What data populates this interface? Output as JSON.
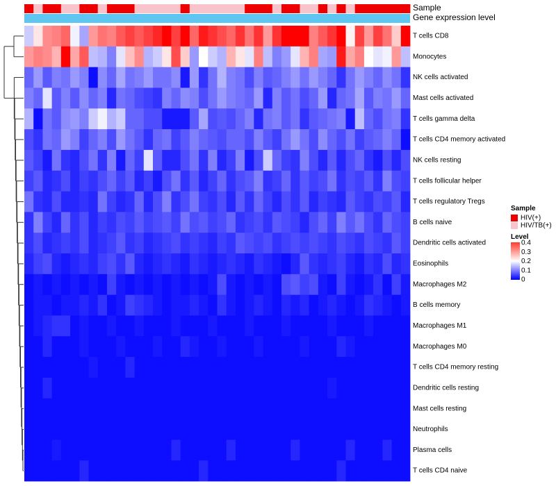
{
  "chart_data": {
    "type": "heatmap",
    "title": "",
    "annotation_tracks": [
      "Sample",
      "Gene expression level"
    ],
    "sample_groups": [
      "HIV(+)",
      "HIV/TB(+)"
    ],
    "sample_colors": {
      "HIV(+)": "#ee0000",
      "HIV/TB(+)": "#f9c3cb"
    },
    "gene_expression_color": "#5ec6f0",
    "sample_annotation": [
      1,
      0,
      1,
      1,
      0,
      0,
      1,
      1,
      0,
      1,
      1,
      1,
      0,
      0,
      0,
      0,
      0,
      1,
      0,
      0,
      0,
      0,
      0,
      0,
      1,
      1,
      1,
      0,
      1,
      1,
      0,
      0,
      1,
      0,
      1,
      0,
      1,
      1,
      1,
      1,
      1,
      1
    ],
    "rows": [
      "T cells CD8",
      "Monocytes",
      "NK cells activated",
      "Mast cells activated",
      "T cells gamma delta",
      "T cells CD4 memory activated",
      "NK cells resting",
      "T cells follicular helper",
      "T cells regulatory  Tregs",
      "B cells naive",
      "Dendritic cells activated",
      "Eosinophils",
      "Macrophages M2",
      "B cells memory",
      "Macrophages M1",
      "Macrophages M0",
      "T cells CD4 memory resting",
      "Dendritic cells resting",
      "Mast cells resting",
      "Neutrophils",
      "Plasma cells",
      "T cells CD4 naive"
    ],
    "values": [
      [
        0.16,
        0.22,
        0.29,
        0.3,
        0.32,
        0.19,
        0.13,
        0.28,
        0.31,
        0.3,
        0.33,
        0.35,
        0.33,
        0.35,
        0.37,
        0.42,
        0.35,
        0.41,
        0.32,
        0.38,
        0.36,
        0.34,
        0.32,
        0.36,
        0.31,
        0.36,
        0.28,
        0.36,
        0.42,
        0.4,
        0.43,
        0.3,
        0.33,
        0.36,
        0.42,
        0.21,
        0.35,
        0.28,
        0.35,
        0.31,
        0.24,
        0.42
      ],
      [
        0.28,
        0.3,
        0.29,
        0.26,
        0.4,
        0.27,
        0.33,
        0.15,
        0.14,
        0.1,
        0.18,
        0.25,
        0.29,
        0.14,
        0.16,
        0.22,
        0.34,
        0.24,
        0.12,
        0.2,
        0.16,
        0.14,
        0.26,
        0.22,
        0.18,
        0.3,
        0.15,
        0.1,
        0.12,
        0.18,
        0.26,
        0.3,
        0.13,
        0.12,
        0.38,
        0.27,
        0.3,
        0.2,
        0.18,
        0.19,
        0.28,
        0.15
      ],
      [
        0.08,
        0.12,
        0.07,
        0.1,
        0.09,
        0.12,
        0.1,
        0.01,
        0.11,
        0.08,
        0.13,
        0.09,
        0.1,
        0.12,
        0.09,
        0.09,
        0.11,
        0.02,
        0.12,
        0.04,
        0.09,
        0.14,
        0.1,
        0.09,
        0.06,
        0.1,
        0.07,
        0.08,
        0.1,
        0.12,
        0.09,
        0.12,
        0.1,
        0.08,
        0.04,
        0.09,
        0.12,
        0.1,
        0.08,
        0.11,
        0.09,
        0.04
      ],
      [
        0.1,
        0.08,
        0.18,
        0.07,
        0.1,
        0.07,
        0.11,
        0.08,
        0.1,
        0.03,
        0.09,
        0.08,
        0.06,
        0.05,
        0.04,
        0.1,
        0.08,
        0.11,
        0.1,
        0.06,
        0.09,
        0.12,
        0.1,
        0.09,
        0.08,
        0.12,
        0.03,
        0.1,
        0.07,
        0.09,
        0.06,
        0.08,
        0.12,
        0.03,
        0.08,
        0.09,
        0.13,
        0.07,
        0.1,
        0.09,
        0.12,
        0.08
      ],
      [
        0.14,
        0.01,
        0.09,
        0.07,
        0.11,
        0.12,
        0.1,
        0.16,
        0.19,
        0.14,
        0.16,
        0.08,
        0.08,
        0.06,
        0.06,
        0.02,
        0.02,
        0.02,
        0.07,
        0.13,
        0.06,
        0.07,
        0.06,
        0.08,
        0.1,
        0.03,
        0.09,
        0.1,
        0.07,
        0.09,
        0.04,
        0.07,
        0.08,
        0.09,
        0.1,
        0.02,
        0.15,
        0.08,
        0.06,
        0.09,
        0.1,
        0.04
      ],
      [
        0.06,
        0.04,
        0.09,
        0.08,
        0.12,
        0.1,
        0.05,
        0.08,
        0.1,
        0.06,
        0.12,
        0.09,
        0.07,
        0.04,
        0.08,
        0.09,
        0.05,
        0.07,
        0.1,
        0.08,
        0.07,
        0.06,
        0.08,
        0.08,
        0.06,
        0.1,
        0.07,
        0.05,
        0.09,
        0.12,
        0.09,
        0.06,
        0.11,
        0.08,
        0.06,
        0.09,
        0.05,
        0.07,
        0.08,
        0.1,
        0.08,
        0.01
      ],
      [
        0.07,
        0.05,
        0.02,
        0.09,
        0.04,
        0.03,
        0.06,
        0.09,
        0.04,
        0.1,
        0.02,
        0.08,
        0.05,
        0.18,
        0.07,
        0.03,
        0.03,
        0.06,
        0.09,
        0.04,
        0.1,
        0.03,
        0.05,
        0.1,
        0.02,
        0.06,
        0.16,
        0.08,
        0.05,
        0.04,
        0.1,
        0.06,
        0.03,
        0.07,
        0.03,
        0.06,
        0.08,
        0.04,
        0.02,
        0.06,
        0.03,
        0.06
      ],
      [
        0.05,
        0.07,
        0.03,
        0.04,
        0.06,
        0.03,
        0.05,
        0.04,
        0.06,
        0.08,
        0.05,
        0.07,
        0.03,
        0.05,
        0.02,
        0.06,
        0.09,
        0.04,
        0.07,
        0.03,
        0.05,
        0.08,
        0.04,
        0.06,
        0.07,
        0.1,
        0.04,
        0.05,
        0.08,
        0.04,
        0.07,
        0.05,
        0.06,
        0.09,
        0.04,
        0.06,
        0.05,
        0.07,
        0.04,
        0.1,
        0.06,
        0.05
      ],
      [
        0.09,
        0.04,
        0.03,
        0.06,
        0.03,
        0.03,
        0.04,
        0.03,
        0.09,
        0.05,
        0.03,
        0.04,
        0.08,
        0.03,
        0.06,
        0.1,
        0.04,
        0.06,
        0.09,
        0.05,
        0.04,
        0.06,
        0.03,
        0.07,
        0.04,
        0.08,
        0.05,
        0.03,
        0.06,
        0.04,
        0.07,
        0.03,
        0.05,
        0.04,
        0.03,
        0.07,
        0.05,
        0.04,
        0.06,
        0.05,
        0.07,
        0.03
      ],
      [
        0.04,
        0.1,
        0.05,
        0.03,
        0.08,
        0.04,
        0.06,
        0.03,
        0.05,
        0.04,
        0.06,
        0.05,
        0.07,
        0.05,
        0.06,
        0.07,
        0.05,
        0.09,
        0.06,
        0.07,
        0.05,
        0.06,
        0.08,
        0.04,
        0.05,
        0.06,
        0.04,
        0.07,
        0.06,
        0.05,
        0.03,
        0.06,
        0.08,
        0.05,
        0.1,
        0.07,
        0.09,
        0.06,
        0.04,
        0.08,
        0.06,
        0.05
      ],
      [
        0.04,
        0.06,
        0.03,
        0.04,
        0.05,
        0.04,
        0.06,
        0.03,
        0.04,
        0.05,
        0.07,
        0.04,
        0.05,
        0.03,
        0.04,
        0.05,
        0.06,
        0.04,
        0.05,
        0.04,
        0.03,
        0.05,
        0.04,
        0.07,
        0.06,
        0.05,
        0.06,
        0.04,
        0.05,
        0.06,
        0.05,
        0.06,
        0.05,
        0.04,
        0.06,
        0.05,
        0.04,
        0.06,
        0.05,
        0.04,
        0.07,
        0.05
      ],
      [
        0.03,
        0.05,
        0.06,
        0.03,
        0.02,
        0.03,
        0.04,
        0.03,
        0.05,
        0.06,
        0.04,
        0.07,
        0.03,
        0.02,
        0.03,
        0.04,
        0.03,
        0.02,
        0.04,
        0.03,
        0.02,
        0.03,
        0.04,
        0.03,
        0.02,
        0.04,
        0.03,
        0.02,
        0.01,
        0.03,
        0.07,
        0.04,
        0.03,
        0.04,
        0.05,
        0.03,
        0.02,
        0.04,
        0.03,
        0.06,
        0.03,
        0.04
      ],
      [
        0.01,
        0.02,
        0.01,
        0.02,
        0.01,
        0.02,
        0.01,
        0.02,
        0.01,
        0.05,
        0.02,
        0.01,
        0.02,
        0.01,
        0.02,
        0.01,
        0.02,
        0.01,
        0.02,
        0.01,
        0.02,
        0.06,
        0.02,
        0.01,
        0.02,
        0.01,
        0.02,
        0.01,
        0.06,
        0.07,
        0.05,
        0.06,
        0.02,
        0.01,
        0.05,
        0.02,
        0.01,
        0.02,
        0.04,
        0.01,
        0.05,
        0.02
      ],
      [
        0.01,
        0.02,
        0.02,
        0.01,
        0.02,
        0.02,
        0.03,
        0.02,
        0.04,
        0.01,
        0.02,
        0.05,
        0.04,
        0.03,
        0.02,
        0.01,
        0.02,
        0.02,
        0.03,
        0.02,
        0.01,
        0.04,
        0.02,
        0.01,
        0.02,
        0.03,
        0.02,
        0.01,
        0.03,
        0.02,
        0.03,
        0.01,
        0.02,
        0.03,
        0.02,
        0.01,
        0.02,
        0.04,
        0.03,
        0.02,
        0.01,
        0.02
      ],
      [
        0.01,
        0.02,
        0.03,
        0.04,
        0.04,
        0.01,
        0.02,
        0.01,
        0.01,
        0.02,
        0.01,
        0.01,
        0.02,
        0.01,
        0.01,
        0.01,
        0.02,
        0.01,
        0.01,
        0.01,
        0.02,
        0.01,
        0.01,
        0.01,
        0.02,
        0.01,
        0.01,
        0.01,
        0.02,
        0.01,
        0.01,
        0.01,
        0.01,
        0.02,
        0.01,
        0.01,
        0.01,
        0.02,
        0.01,
        0.01,
        0.01,
        0.01
      ],
      [
        0.01,
        0.01,
        0.03,
        0.01,
        0.01,
        0.01,
        0.02,
        0.01,
        0.01,
        0.01,
        0.02,
        0.01,
        0.01,
        0.01,
        0.02,
        0.01,
        0.01,
        0.03,
        0.02,
        0.01,
        0.01,
        0.02,
        0.01,
        0.01,
        0.01,
        0.02,
        0.01,
        0.01,
        0.01,
        0.01,
        0.02,
        0.01,
        0.01,
        0.01,
        0.03,
        0.02,
        0.01,
        0.01,
        0.01,
        0.01,
        0.01,
        0.01
      ],
      [
        0.01,
        0.01,
        0.01,
        0.01,
        0.01,
        0.01,
        0.01,
        0.02,
        0.01,
        0.01,
        0.01,
        0.03,
        0.01,
        0.01,
        0.01,
        0.01,
        0.01,
        0.01,
        0.01,
        0.01,
        0.01,
        0.01,
        0.01,
        0.01,
        0.01,
        0.01,
        0.01,
        0.01,
        0.01,
        0.01,
        0.01,
        0.01,
        0.01,
        0.01,
        0.01,
        0.01,
        0.01,
        0.01,
        0.01,
        0.01,
        0.01,
        0.01
      ],
      [
        0.01,
        0.01,
        0.03,
        0.01,
        0.01,
        0.01,
        0.01,
        0.01,
        0.01,
        0.01,
        0.01,
        0.01,
        0.01,
        0.01,
        0.01,
        0.01,
        0.01,
        0.01,
        0.01,
        0.01,
        0.01,
        0.01,
        0.01,
        0.01,
        0.01,
        0.01,
        0.01,
        0.01,
        0.01,
        0.01,
        0.01,
        0.01,
        0.01,
        0.02,
        0.01,
        0.01,
        0.01,
        0.01,
        0.01,
        0.01,
        0.01,
        0.01
      ],
      [
        0.01,
        0.01,
        0.01,
        0.01,
        0.01,
        0.01,
        0.01,
        0.01,
        0.01,
        0.01,
        0.01,
        0.01,
        0.01,
        0.01,
        0.01,
        0.01,
        0.01,
        0.01,
        0.01,
        0.01,
        0.01,
        0.01,
        0.01,
        0.01,
        0.01,
        0.01,
        0.01,
        0.01,
        0.01,
        0.01,
        0.01,
        0.01,
        0.01,
        0.01,
        0.01,
        0.01,
        0.01,
        0.01,
        0.01,
        0.01,
        0.01,
        0.01
      ],
      [
        0.01,
        0.01,
        0.01,
        0.01,
        0.01,
        0.01,
        0.01,
        0.01,
        0.01,
        0.01,
        0.01,
        0.01,
        0.01,
        0.01,
        0.01,
        0.01,
        0.01,
        0.01,
        0.01,
        0.01,
        0.01,
        0.01,
        0.01,
        0.01,
        0.01,
        0.01,
        0.01,
        0.01,
        0.01,
        0.01,
        0.01,
        0.01,
        0.01,
        0.01,
        0.01,
        0.01,
        0.01,
        0.01,
        0.01,
        0.01,
        0.01,
        0.01
      ],
      [
        0.01,
        0.01,
        0.01,
        0.02,
        0.01,
        0.01,
        0.01,
        0.01,
        0.01,
        0.01,
        0.01,
        0.01,
        0.01,
        0.01,
        0.01,
        0.01,
        0.03,
        0.01,
        0.01,
        0.01,
        0.01,
        0.01,
        0.03,
        0.01,
        0.01,
        0.01,
        0.01,
        0.01,
        0.01,
        0.03,
        0.01,
        0.01,
        0.01,
        0.01,
        0.01,
        0.03,
        0.01,
        0.01,
        0.01,
        0.03,
        0.01,
        0.01
      ],
      [
        0.01,
        0.01,
        0.01,
        0.01,
        0.01,
        0.01,
        0.03,
        0.01,
        0.01,
        0.01,
        0.01,
        0.01,
        0.01,
        0.01,
        0.01,
        0.01,
        0.01,
        0.01,
        0.01,
        0.03,
        0.01,
        0.01,
        0.01,
        0.01,
        0.01,
        0.01,
        0.01,
        0.01,
        0.01,
        0.01,
        0.01,
        0.01,
        0.01,
        0.01,
        0.03,
        0.01,
        0.01,
        0.01,
        0.01,
        0.01,
        0.01,
        0.01
      ]
    ],
    "color_scale": {
      "low": "#0000ff",
      "mid": "#ffffff",
      "high": "#ff0000",
      "domain": [
        0,
        0.2,
        0.4
      ]
    },
    "legend": {
      "sample_title": "Sample",
      "level_title": "Level",
      "level_ticks": [
        "0.4",
        "0.3",
        "0.2",
        "0.1",
        "0"
      ],
      "placement": "right"
    }
  }
}
